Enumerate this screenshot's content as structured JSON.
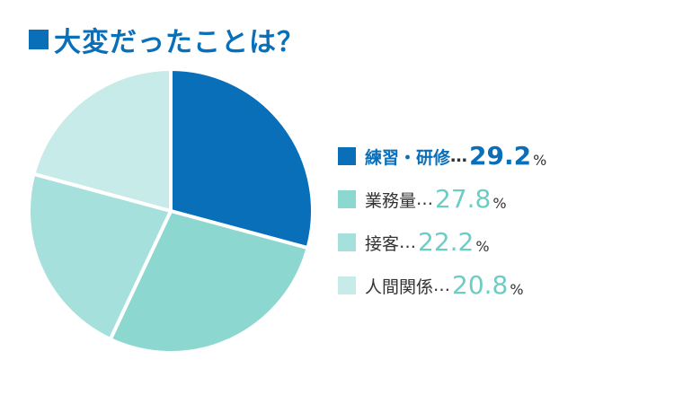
{
  "title": {
    "marker_color": "#0a6fb9",
    "text": "大変だったことは？"
  },
  "chart_data": {
    "type": "pie",
    "start_angle_deg": 0,
    "direction": "clockwise",
    "series": [
      {
        "label": "練習・研修",
        "separator": "…",
        "value_text": "29.2",
        "value": 29.2,
        "unit": "%",
        "color": "#0a6fb9",
        "value_color": "#0a6fb9",
        "highlight": true
      },
      {
        "label": "業務量",
        "separator": "…",
        "value_text": "27.8",
        "value": 27.8,
        "unit": "%",
        "color": "#8cd8d0",
        "value_color": "#6ccdc4",
        "highlight": false
      },
      {
        "label": "接客",
        "separator": "…",
        "value_text": "22.2",
        "value": 22.2,
        "unit": "%",
        "color": "#a5e0dc",
        "value_color": "#6ccdc4",
        "highlight": false
      },
      {
        "label": "人間関係",
        "separator": "…",
        "value_text": "20.8",
        "value": 20.8,
        "unit": "%",
        "color": "#c6ebe9",
        "value_color": "#6ccdc4",
        "highlight": false
      }
    ]
  }
}
